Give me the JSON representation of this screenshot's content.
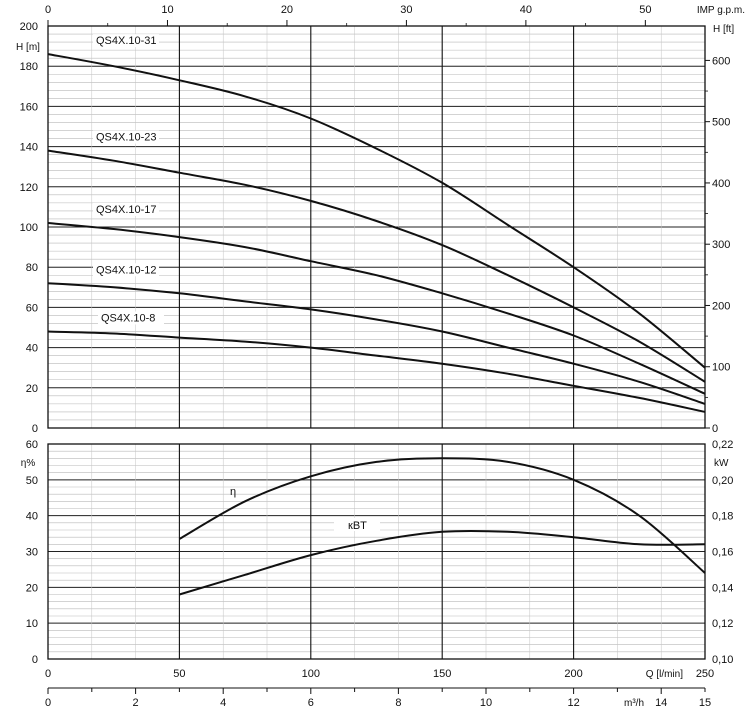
{
  "top_axis": {
    "label": "IMP g.p.m.",
    "ticks": [
      0,
      10,
      20,
      30,
      40,
      50
    ]
  },
  "right_axis_upper": {
    "label": "H [ft]",
    "ticks": [
      0,
      100,
      200,
      300,
      400,
      500,
      600
    ]
  },
  "right_axis_lower": {
    "label": "kW",
    "ticks": [
      "0,10",
      "0,12",
      "0,14",
      "0,16",
      "0,18",
      "0,20",
      "0,22"
    ]
  },
  "bottom_axis_1": {
    "label": "Q [l/min]",
    "ticks": [
      0,
      50,
      100,
      150,
      200,
      250
    ]
  },
  "bottom_axis_2": {
    "label": "m³/h",
    "ticks": [
      0,
      2,
      4,
      6,
      8,
      10,
      12,
      14,
      15
    ]
  },
  "chart_data": [
    {
      "type": "line",
      "title": "",
      "xlabel": "Q [l/min]",
      "ylabel": "H [m]",
      "xlim": [
        0,
        250
      ],
      "ylim": [
        0,
        200
      ],
      "y_ticks": [
        0,
        20,
        40,
        60,
        80,
        100,
        120,
        140,
        160,
        180,
        200
      ],
      "grid": true,
      "series": [
        {
          "name": "QS4X.10-31",
          "x": [
            0,
            25,
            50,
            75,
            100,
            125,
            150,
            175,
            200,
            225,
            250
          ],
          "y": [
            186,
            180,
            173,
            165,
            154,
            139,
            122,
            101,
            80,
            57,
            30
          ]
        },
        {
          "name": "QS4X.10-23",
          "x": [
            0,
            25,
            50,
            75,
            100,
            125,
            150,
            175,
            200,
            225,
            250
          ],
          "y": [
            138,
            133,
            127,
            121,
            113,
            103,
            91,
            76,
            60,
            43,
            23
          ]
        },
        {
          "name": "QS4X.10-17",
          "x": [
            0,
            25,
            50,
            75,
            100,
            125,
            150,
            175,
            200,
            225,
            250
          ],
          "y": [
            102,
            99,
            95,
            90,
            83,
            76,
            67,
            57,
            46,
            32,
            17
          ]
        },
        {
          "name": "QS4X.10-12",
          "x": [
            0,
            25,
            50,
            75,
            100,
            125,
            150,
            175,
            200,
            225,
            250
          ],
          "y": [
            72,
            70,
            67,
            63,
            59,
            54,
            48,
            40,
            32,
            23,
            12
          ]
        },
        {
          "name": "QS4X.10-8",
          "x": [
            0,
            25,
            50,
            75,
            100,
            125,
            150,
            175,
            200,
            225,
            250
          ],
          "y": [
            48,
            47,
            45,
            43,
            40,
            36,
            32,
            27,
            21,
            15,
            8
          ]
        }
      ]
    },
    {
      "type": "line",
      "title": "",
      "xlabel": "Q [l/min]",
      "ylabel": "η%",
      "xlim": [
        0,
        250
      ],
      "ylim": [
        0,
        60
      ],
      "y_ticks": [
        0,
        10,
        20,
        30,
        40,
        50,
        60
      ],
      "y2label": "kW",
      "y2lim": [
        0.1,
        0.22
      ],
      "grid": true,
      "series": [
        {
          "name": "η",
          "axis": "left",
          "x": [
            50,
            75,
            100,
            125,
            150,
            175,
            200,
            225,
            250
          ],
          "y": [
            33.5,
            44,
            51,
            55,
            56,
            55,
            50,
            40,
            24
          ]
        },
        {
          "name": "кBT",
          "axis": "right",
          "x": [
            50,
            75,
            100,
            125,
            150,
            175,
            200,
            225,
            250
          ],
          "y": [
            0.136,
            0.147,
            0.158,
            0.166,
            0.171,
            0.171,
            0.168,
            0.164,
            0.164
          ]
        }
      ]
    }
  ]
}
